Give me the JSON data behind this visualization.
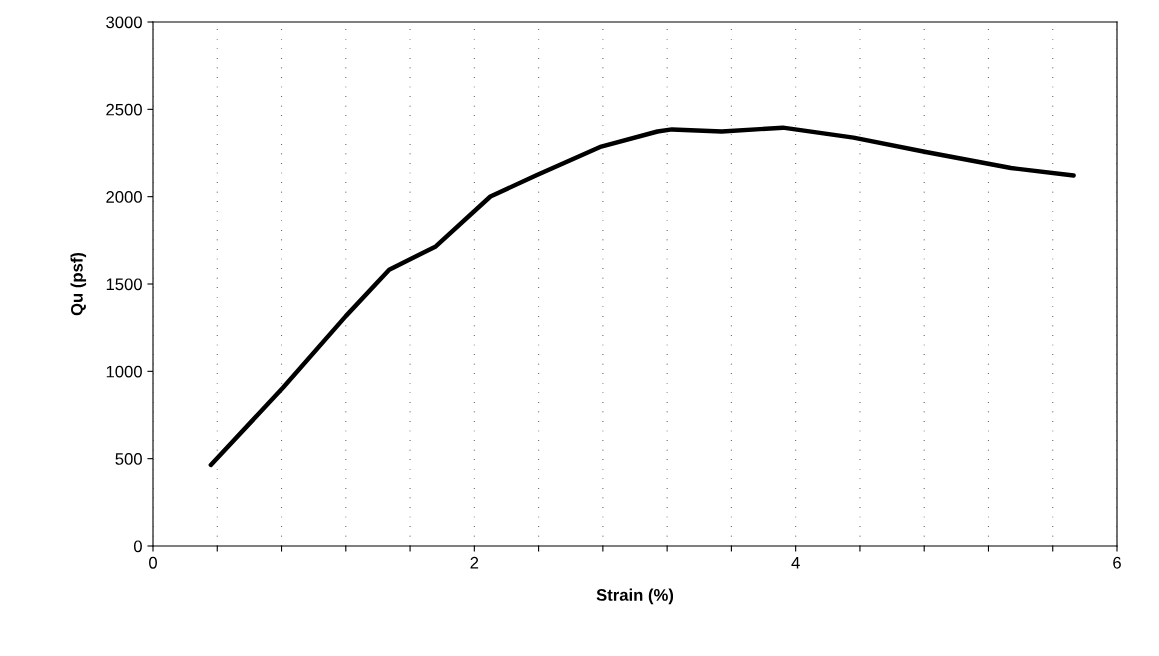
{
  "chart_data": {
    "type": "line",
    "xlabel": "Strain (%)",
    "ylabel": "Qu (psf)",
    "series": [
      {
        "color": "#000000",
        "x": [
          0.36,
          0.81,
          1.2,
          1.47,
          1.76,
          2.1,
          2.39,
          2.79,
          3.14,
          3.23,
          3.54,
          3.92,
          4.36,
          4.81,
          5.34,
          5.73
        ],
        "values": [
          464,
          907,
          1316,
          1582,
          1715,
          2001,
          2124,
          2287,
          2373,
          2385,
          2373,
          2395,
          2338,
          2256,
          2164,
          2121
        ]
      }
    ],
    "xlim": [
      0,
      6
    ],
    "xticks": [
      0,
      {
        "value": 0.4,
        "label": null
      },
      {
        "value": 0.8,
        "label": null
      },
      {
        "value": 1.2,
        "label": null
      },
      {
        "value": 1.6,
        "label": null
      },
      2,
      {
        "value": 2.4,
        "label": null
      },
      {
        "value": 2.8,
        "label": null
      },
      {
        "value": 3.2,
        "label": null
      },
      {
        "value": 3.6,
        "label": null
      },
      4,
      {
        "value": 4.4,
        "label": null
      },
      {
        "value": 4.8,
        "label": null
      },
      {
        "value": 5.2,
        "label": null
      },
      {
        "value": 5.6,
        "label": null
      },
      6
    ],
    "ylim": [
      0,
      3000
    ],
    "yticks": [
      0,
      500,
      1000,
      1500,
      2000,
      2500,
      3000
    ],
    "grid": "x",
    "marker": "none",
    "line_style": "solid"
  }
}
